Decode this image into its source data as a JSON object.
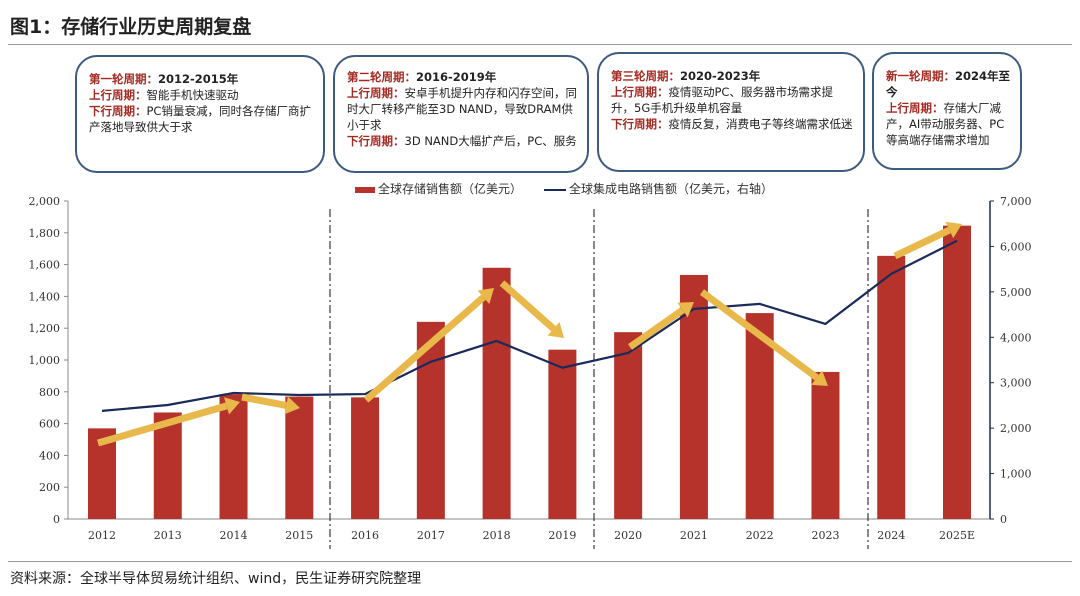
{
  "title": "图1：存储行业历史周期复盘",
  "boxes": [
    {
      "head": "第一轮周期：",
      "period": "2012-2015年",
      "lines": [
        {
          "k": "上行周期：",
          "v": "智能手机快速驱动"
        },
        {
          "k": "下行周期：",
          "v": "PC销量衰减，同时各存储厂商扩产落地导致供大于求"
        }
      ]
    },
    {
      "head": "第二轮周期：",
      "period": "2016-2019年",
      "lines": [
        {
          "k": "上行周期：",
          "v": "安卓手机提升内存和闪存空间，同时大厂转移产能至3D NAND，导致DRAM供小于求"
        },
        {
          "k": "下行周期：",
          "v": "3D NAND大幅扩产后，PC、服务"
        }
      ]
    },
    {
      "head": "第三轮周期：",
      "period": "2020-2023年",
      "lines": [
        {
          "k": "上行周期：",
          "v": "疫情驱动PC、服务器市场需求提升，5G手机升级单机容量"
        },
        {
          "k": "下行周期：",
          "v": "疫情反复，消费电子等终端需求低迷"
        }
      ]
    },
    {
      "head": "新一轮周期：",
      "period": "2024年至今",
      "lines": [
        {
          "k": "上行周期：",
          "v": "存储大厂减产，AI带动服务器、PC等高端存储需求增加"
        }
      ]
    }
  ],
  "source": "资料来源：全球半导体贸易统计组织、wind，民生证券研究院整理",
  "chart_data": {
    "type": "bar+line",
    "categories": [
      "2012",
      "2013",
      "2014",
      "2015",
      "2016",
      "2017",
      "2018",
      "2019",
      "2020",
      "2021",
      "2022",
      "2023",
      "2024",
      "2025E"
    ],
    "series": [
      {
        "name": "全球存储销售额（亿美元）",
        "type": "bar",
        "axis": "left",
        "color": "#b5332a",
        "values": [
          570,
          670,
          785,
          770,
          765,
          1240,
          1580,
          1065,
          1175,
          1535,
          1295,
          925,
          1655,
          1845
        ]
      },
      {
        "name": "全球集成电路销售额（亿美元，右轴）",
        "type": "line",
        "axis": "right",
        "color": "#1a2a5a",
        "values": [
          2380,
          2510,
          2775,
          2730,
          2750,
          3460,
          3920,
          3330,
          3655,
          4625,
          4735,
          4295,
          5395,
          6125
        ]
      }
    ],
    "ylim_left": [
      0,
      2000
    ],
    "yticks_left": [
      "0",
      "200",
      "400",
      "600",
      "800",
      "1,000",
      "1,200",
      "1,400",
      "1,600",
      "1,800",
      "2,000"
    ],
    "ylim_right": [
      0,
      7000
    ],
    "yticks_right": [
      "0",
      "1,000",
      "2,000",
      "3,000",
      "4,000",
      "5,000",
      "6,000",
      "7,000"
    ],
    "grid": false,
    "legend": "top",
    "annotation_color": "#e8b84a"
  }
}
